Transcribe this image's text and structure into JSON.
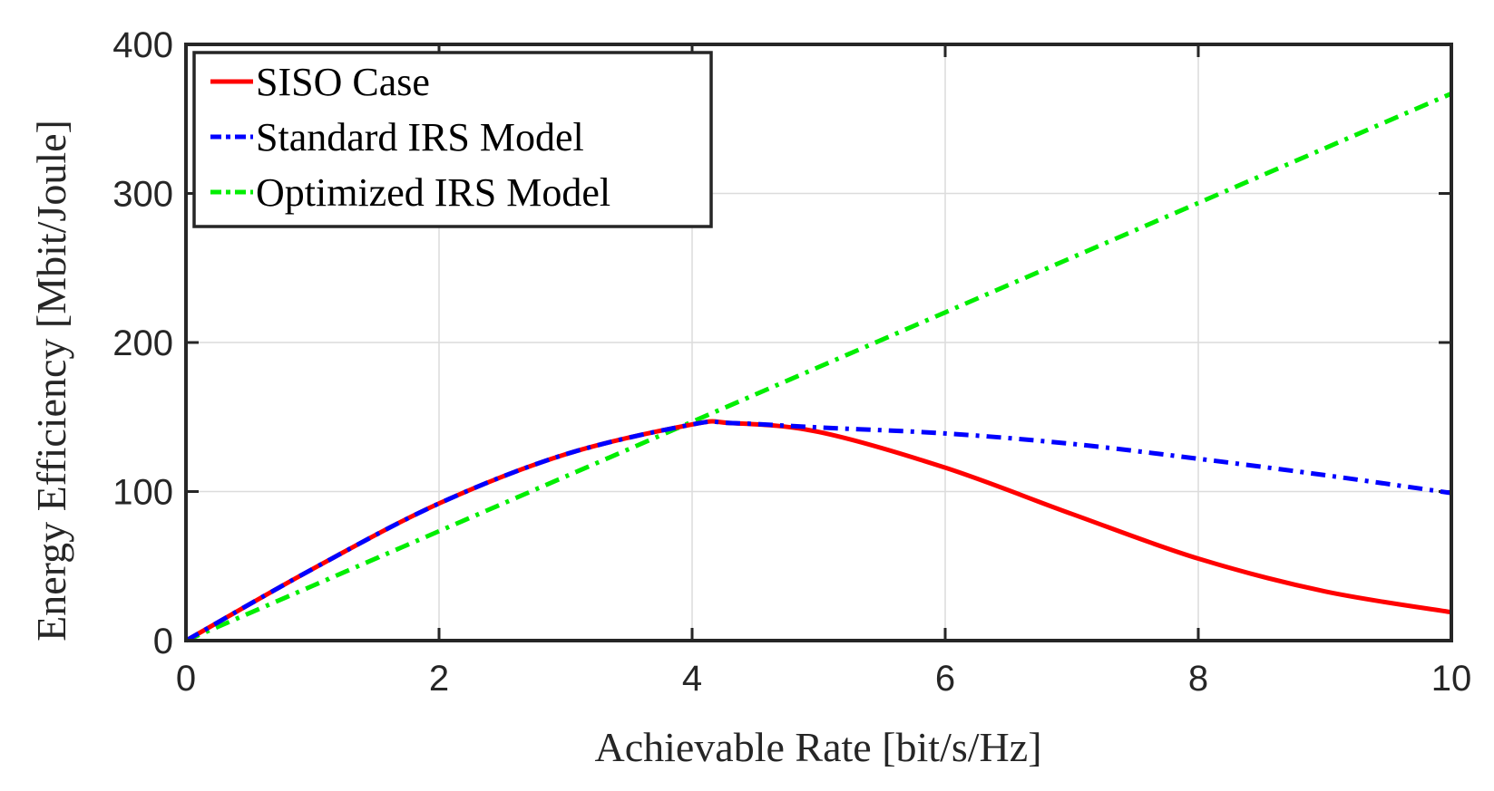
{
  "chart_data": {
    "type": "line",
    "xlabel": "Achievable Rate [bit/s/Hz]",
    "ylabel": "Energy Efficiency [Mbit/Joule]",
    "xlim": [
      0,
      10
    ],
    "ylim": [
      0,
      400
    ],
    "xticks": [
      "0",
      "2",
      "4",
      "6",
      "8",
      "10"
    ],
    "yticks": [
      "0",
      "100",
      "200",
      "300",
      "400"
    ],
    "grid": true,
    "legend_position": "top-left",
    "x": [
      0,
      1,
      2,
      3,
      4,
      4.3,
      5,
      6,
      7,
      8,
      9,
      10
    ],
    "series": [
      {
        "name": "SISO Case",
        "color": "#ff0000",
        "style": "solid",
        "values": [
          0,
          48,
          92,
          125,
          145,
          146,
          140,
          116,
          85,
          55,
          33,
          19
        ]
      },
      {
        "name": "Standard IRS Model",
        "color": "#0000ff",
        "style": "dashdot",
        "values": [
          0,
          48,
          92,
          125,
          145,
          146,
          143,
          139,
          132,
          122,
          111,
          99
        ]
      },
      {
        "name": "Optimized IRS Model",
        "color": "#00ee00",
        "style": "dashdot",
        "values": [
          0,
          36.7,
          73.4,
          110.1,
          146.8,
          157.8,
          183.5,
          220.2,
          256.9,
          293.6,
          330.3,
          367
        ]
      }
    ]
  }
}
